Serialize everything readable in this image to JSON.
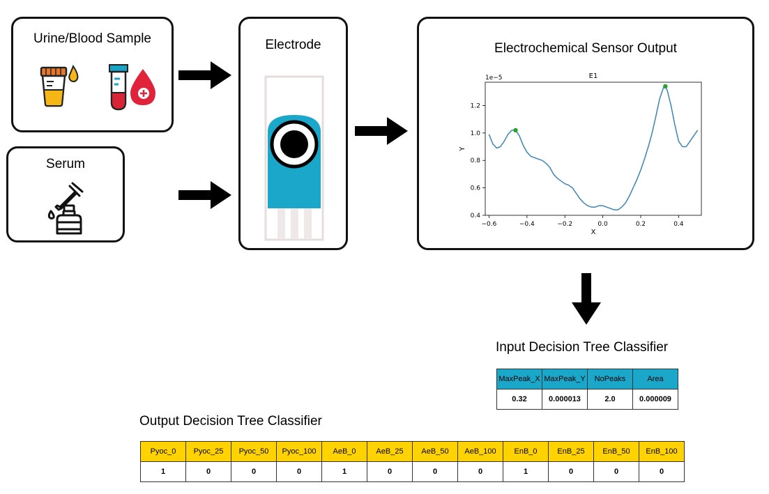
{
  "boxes": {
    "sample": {
      "title": "Urine/Blood Sample"
    },
    "serum": {
      "title": "Serum"
    },
    "electrode": {
      "title": "Electrode"
    },
    "sensor": {
      "title": "Electrochemical Sensor Output"
    }
  },
  "icons": {
    "sample": [
      "urine-cup-icon",
      "blood-tube-icon",
      "blood-drop-icon"
    ],
    "serum": [
      "dropper-bottle-icon"
    ]
  },
  "colors": {
    "electrode_blue": "#1ba7c9",
    "input_header": "#1ba7c9",
    "output_header": "#ffd200",
    "curve": "#3b83bd",
    "peak": "#2ca02c"
  },
  "chart_data": {
    "type": "line",
    "title": "E1",
    "xlabel": "X",
    "ylabel": "Y",
    "y_scale_label": "1e−5",
    "xlim": [
      -0.62,
      0.52
    ],
    "ylim": [
      0.4,
      1.37
    ],
    "x_ticks": [
      -0.6,
      -0.4,
      -0.2,
      0.0,
      0.2,
      0.4
    ],
    "x_tick_labels": [
      "−0.6",
      "−0.4",
      "−0.2",
      "0.0",
      "0.2",
      "0.4"
    ],
    "y_ticks": [
      0.4,
      0.6,
      0.8,
      1.0,
      1.2
    ],
    "y_tick_labels": [
      "0.4",
      "0.6",
      "0.8",
      "1.0",
      "1.2"
    ],
    "grid": false,
    "series": [
      {
        "x": [
          -0.6,
          -0.58,
          -0.56,
          -0.54,
          -0.52,
          -0.5,
          -0.48,
          -0.46,
          -0.44,
          -0.42,
          -0.4,
          -0.38,
          -0.36,
          -0.34,
          -0.32,
          -0.3,
          -0.28,
          -0.26,
          -0.24,
          -0.22,
          -0.2,
          -0.18,
          -0.16,
          -0.14,
          -0.12,
          -0.1,
          -0.08,
          -0.06,
          -0.04,
          -0.02,
          0.0,
          0.02,
          0.04,
          0.06,
          0.08,
          0.1,
          0.12,
          0.14,
          0.16,
          0.18,
          0.2,
          0.22,
          0.24,
          0.26,
          0.28,
          0.3,
          0.32,
          0.33,
          0.34,
          0.36,
          0.38,
          0.4,
          0.42,
          0.44,
          0.46,
          0.48,
          0.5
        ],
        "y": [
          0.99,
          0.92,
          0.89,
          0.9,
          0.94,
          0.99,
          1.02,
          1.02,
          0.98,
          0.91,
          0.86,
          0.83,
          0.82,
          0.81,
          0.8,
          0.78,
          0.75,
          0.7,
          0.67,
          0.65,
          0.63,
          0.62,
          0.6,
          0.56,
          0.52,
          0.49,
          0.47,
          0.46,
          0.46,
          0.47,
          0.47,
          0.46,
          0.45,
          0.44,
          0.44,
          0.46,
          0.49,
          0.54,
          0.6,
          0.66,
          0.73,
          0.81,
          0.9,
          1.0,
          1.12,
          1.25,
          1.33,
          1.34,
          1.31,
          1.2,
          1.06,
          0.94,
          0.9,
          0.9,
          0.94,
          0.98,
          1.02
        ]
      }
    ],
    "peaks": [
      {
        "x": -0.46,
        "y": 1.02
      },
      {
        "x": 0.33,
        "y": 1.34
      }
    ]
  },
  "input_classifier": {
    "title": "Input Decision Tree Classifier",
    "headers": [
      "MaxPeak_X",
      "MaxPeak_Y",
      "NoPeaks",
      "Area"
    ],
    "values": [
      "0.32",
      "0.000013",
      "2.0",
      "0.000009"
    ]
  },
  "output_classifier": {
    "title": "Output Decision Tree Classifier",
    "headers": [
      "Pyoc_0",
      "Pyoc_25",
      "Pyoc_50",
      "Pyoc_100",
      "AeB_0",
      "AeB_25",
      "AeB_50",
      "AeB_100",
      "EnB_0",
      "EnB_25",
      "EnB_50",
      "EnB_100"
    ],
    "values": [
      "1",
      "0",
      "0",
      "0",
      "1",
      "0",
      "0",
      "0",
      "1",
      "0",
      "0",
      "0"
    ]
  }
}
